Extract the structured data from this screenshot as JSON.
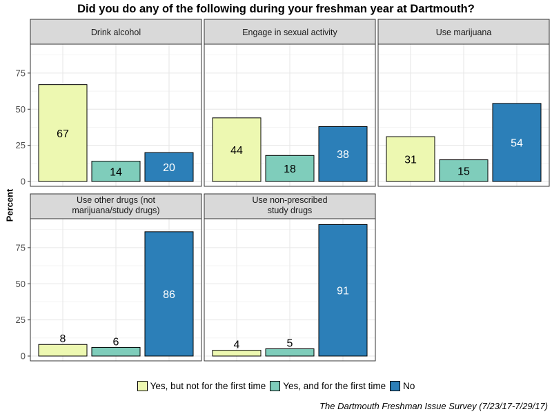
{
  "chart_data": {
    "type": "bar",
    "title": "Did you do any of the following during your freshman year at Dartmouth?",
    "ylabel": "Percent",
    "xlabel": "",
    "ylim": [
      0,
      95
    ],
    "yticks": [
      0,
      25,
      50,
      75
    ],
    "grid": true,
    "legend_position": "bottom",
    "caption": "The Dartmouth Freshman Issue Survey (7/23/17-7/29/17)",
    "series": [
      {
        "name": "Yes, but not for the first time",
        "color": "#edf8b1"
      },
      {
        "name": "Yes, and for the first time",
        "color": "#7fcdbb"
      },
      {
        "name": "No",
        "color": "#2c7fb8"
      }
    ],
    "panels": [
      {
        "title_lines": [
          "Drink alcohol"
        ],
        "values": [
          67,
          14,
          20
        ]
      },
      {
        "title_lines": [
          "Engage in sexual activity"
        ],
        "values": [
          44,
          18,
          38
        ]
      },
      {
        "title_lines": [
          "Use marijuana"
        ],
        "values": [
          31,
          15,
          54
        ]
      },
      {
        "title_lines": [
          "Use other drugs (not",
          "marijuana/study drugs)"
        ],
        "values": [
          8,
          6,
          86
        ]
      },
      {
        "title_lines": [
          "Use non-prescribed",
          "study drugs"
        ],
        "values": [
          4,
          5,
          91
        ]
      }
    ]
  }
}
